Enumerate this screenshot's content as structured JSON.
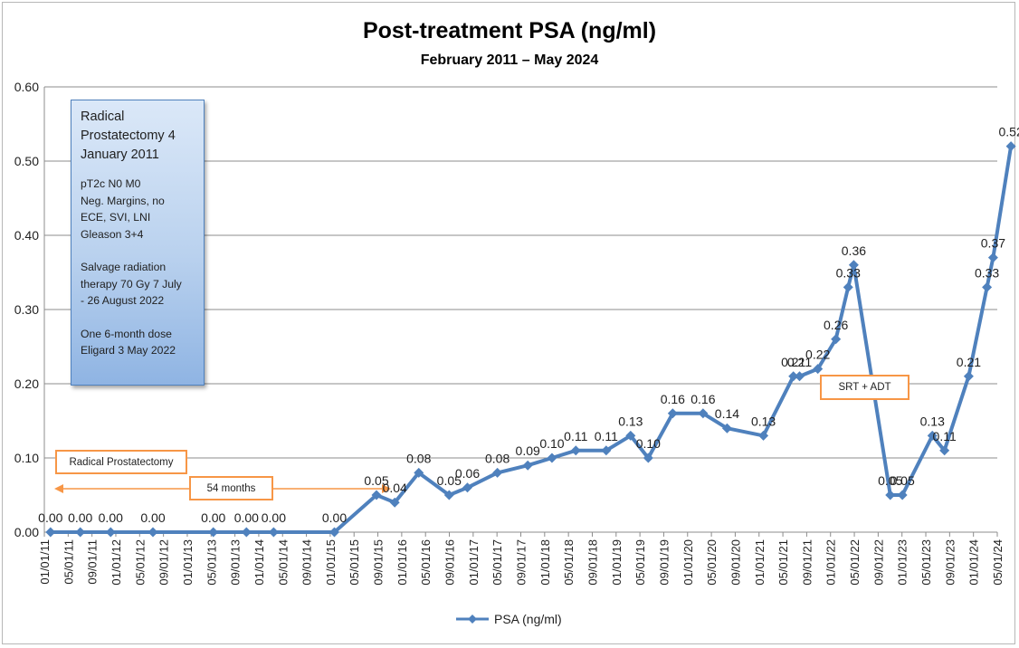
{
  "chart_data": {
    "type": "line",
    "title": "Post-treatment PSA (ng/ml)",
    "subtitle": "February 2011 – May 2024",
    "xlabel": "",
    "ylabel": "",
    "ylim": [
      0,
      0.6
    ],
    "yticks": [
      "0.00",
      "0.10",
      "0.20",
      "0.30",
      "0.40",
      "0.50",
      "0.60"
    ],
    "x_tick_labels": [
      "01/01/11",
      "05/01/11",
      "09/01/11",
      "01/01/12",
      "05/01/12",
      "09/01/12",
      "01/01/13",
      "05/01/13",
      "09/01/13",
      "01/01/14",
      "05/01/14",
      "09/01/14",
      "01/01/15",
      "05/01/15",
      "09/01/15",
      "01/01/16",
      "05/01/16",
      "09/01/16",
      "01/01/17",
      "05/01/17",
      "09/01/17",
      "01/01/18",
      "05/01/18",
      "09/01/18",
      "01/01/19",
      "05/01/19",
      "09/01/19",
      "01/01/20",
      "05/01/20",
      "09/01/20",
      "01/01/21",
      "05/01/21",
      "09/01/21",
      "01/01/22",
      "05/01/22",
      "09/01/22",
      "01/01/23",
      "05/01/23",
      "09/01/23",
      "01/01/24",
      "05/01/24"
    ],
    "grid": "horizontal",
    "legend_position": "bottom",
    "series": [
      {
        "name": "PSA (ng/ml)",
        "color": "#4f81bd",
        "points": [
          {
            "x": "2011-02-01",
            "y": 0.0,
            "label": "0.00"
          },
          {
            "x": "2011-07-01",
            "y": 0.0,
            "label": "0.00"
          },
          {
            "x": "2011-12-01",
            "y": 0.0,
            "label": "0.00"
          },
          {
            "x": "2012-07-01",
            "y": 0.0,
            "label": "0.00"
          },
          {
            "x": "2013-05-01",
            "y": 0.0,
            "label": "0.00"
          },
          {
            "x": "2013-10-15",
            "y": 0.0,
            "label": "0.00"
          },
          {
            "x": "2014-03-01",
            "y": 0.0,
            "label": "0.00"
          },
          {
            "x": "2015-01-01",
            "y": 0.0,
            "label": "0.00"
          },
          {
            "x": "2015-08-01",
            "y": 0.05,
            "label": "0.05"
          },
          {
            "x": "2015-11-01",
            "y": 0.04,
            "label": "0.04"
          },
          {
            "x": "2016-03-01",
            "y": 0.08,
            "label": "0.08"
          },
          {
            "x": "2016-08-01",
            "y": 0.05,
            "label": "0.05"
          },
          {
            "x": "2016-11-01",
            "y": 0.06,
            "label": "0.06"
          },
          {
            "x": "2017-04-01",
            "y": 0.08,
            "label": "0.08"
          },
          {
            "x": "2017-09-01",
            "y": 0.09,
            "label": "0.09"
          },
          {
            "x": "2018-01-01",
            "y": 0.1,
            "label": "0.10"
          },
          {
            "x": "2018-05-01",
            "y": 0.11,
            "label": "0.11"
          },
          {
            "x": "2018-10-01",
            "y": 0.11,
            "label": "0.11"
          },
          {
            "x": "2019-02-01",
            "y": 0.13,
            "label": "0.13"
          },
          {
            "x": "2019-05-01",
            "y": 0.1,
            "label": "0.10"
          },
          {
            "x": "2019-09-01",
            "y": 0.16,
            "label": "0.16"
          },
          {
            "x": "2020-02-01",
            "y": 0.16,
            "label": "0.16"
          },
          {
            "x": "2020-06-01",
            "y": 0.14,
            "label": "0.14"
          },
          {
            "x": "2020-12-01",
            "y": 0.13,
            "label": "0.13"
          },
          {
            "x": "2021-05-01",
            "y": 0.21,
            "label": "0.21"
          },
          {
            "x": "2021-06-01",
            "y": 0.21,
            "label": "0.21"
          },
          {
            "x": "2021-09-01",
            "y": 0.22,
            "label": "0.22"
          },
          {
            "x": "2021-12-01",
            "y": 0.26,
            "label": "0.26"
          },
          {
            "x": "2022-02-01",
            "y": 0.33,
            "label": "0.33"
          },
          {
            "x": "2022-03-01",
            "y": 0.36,
            "label": "0.36"
          },
          {
            "x": "2022-09-01",
            "y": 0.05,
            "label": "0.05"
          },
          {
            "x": "2022-11-01",
            "y": 0.05,
            "label": "0.05"
          },
          {
            "x": "2023-04-01",
            "y": 0.13,
            "label": "0.13"
          },
          {
            "x": "2023-06-01",
            "y": 0.11,
            "label": "0.11"
          },
          {
            "x": "2023-10-01",
            "y": 0.21,
            "label": "0.21"
          },
          {
            "x": "2024-01-01",
            "y": 0.33,
            "label": "0.33"
          },
          {
            "x": "2024-02-01",
            "y": 0.37,
            "label": "0.37"
          },
          {
            "x": "2024-05-01",
            "y": 0.52,
            "label": "0.52"
          }
        ]
      }
    ],
    "annotations": {
      "note_title": "Radical Prostatectomy 4 January 2011",
      "note_lines_a": [
        "pT2c N0 M0",
        "Neg. Margins, no",
        "ECE, SVI, LNI",
        "Gleason 3+4"
      ],
      "note_lines_b": [
        "Salvage radiation",
        "therapy 70 Gy 7 July",
        "- 26 August 2022"
      ],
      "note_lines_c": [
        "One 6-month dose",
        "Eligard 3 May 2022"
      ],
      "callout_rp": "Radical Prostatectomy",
      "callout_months": "54 months",
      "callout_srt": "SRT + ADT"
    }
  }
}
